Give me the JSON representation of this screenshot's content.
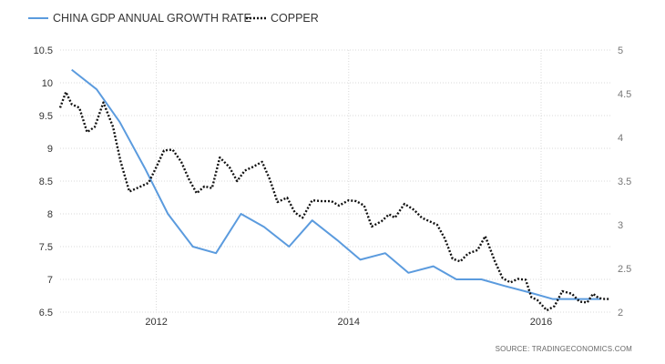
{
  "chart_data": {
    "type": "line",
    "source": "SOURCE: TRADINGECONOMICS.COM",
    "x_ticks": [
      {
        "x": 2012.0,
        "label": "2012"
      },
      {
        "x": 2014.0,
        "label": "2014"
      },
      {
        "x": 2016.0,
        "label": "2016"
      }
    ],
    "xlim": [
      2011.0,
      2016.72
    ],
    "y_left": {
      "lim": [
        6.5,
        10.5
      ],
      "ticks": [
        "6.5",
        "7",
        "7.5",
        "8",
        "8.5",
        "9",
        "9.5",
        "10",
        "10.5"
      ]
    },
    "y_right": {
      "lim": [
        2,
        5
      ],
      "ticks": [
        "2",
        "2.5",
        "3",
        "3.5",
        "4",
        "4.5",
        "5"
      ]
    },
    "grid": true,
    "legend_position": "top-left",
    "series": [
      {
        "name": "CHINA GDP ANNUAL GROWTH RATE",
        "axis": "left",
        "color": "#5b9bde",
        "style": "solid",
        "points": [
          [
            2011.12,
            10.2
          ],
          [
            2011.38,
            9.9
          ],
          [
            2011.62,
            9.4
          ],
          [
            2011.88,
            8.7
          ],
          [
            2012.12,
            8.0
          ],
          [
            2012.38,
            7.5
          ],
          [
            2012.62,
            7.4
          ],
          [
            2012.88,
            8.0
          ],
          [
            2013.12,
            7.8
          ],
          [
            2013.38,
            7.5
          ],
          [
            2013.62,
            7.9
          ],
          [
            2013.88,
            7.6
          ],
          [
            2014.12,
            7.3
          ],
          [
            2014.38,
            7.4
          ],
          [
            2014.62,
            7.1
          ],
          [
            2014.88,
            7.2
          ],
          [
            2015.12,
            7.0
          ],
          [
            2015.38,
            7.0
          ],
          [
            2015.62,
            6.9
          ],
          [
            2015.88,
            6.8
          ],
          [
            2016.12,
            6.7
          ],
          [
            2016.38,
            6.7
          ],
          [
            2016.62,
            6.7
          ]
        ]
      },
      {
        "name": "COPPER",
        "axis": "right",
        "color": "#111111",
        "style": "dotted",
        "points": [
          [
            2011.0,
            4.34
          ],
          [
            2011.06,
            4.52
          ],
          [
            2011.12,
            4.38
          ],
          [
            2011.2,
            4.34
          ],
          [
            2011.28,
            4.06
          ],
          [
            2011.36,
            4.12
          ],
          [
            2011.45,
            4.4
          ],
          [
            2011.55,
            4.12
          ],
          [
            2011.63,
            3.72
          ],
          [
            2011.72,
            3.38
          ],
          [
            2011.8,
            3.42
          ],
          [
            2011.92,
            3.48
          ],
          [
            2012.0,
            3.66
          ],
          [
            2012.08,
            3.85
          ],
          [
            2012.17,
            3.86
          ],
          [
            2012.26,
            3.72
          ],
          [
            2012.34,
            3.52
          ],
          [
            2012.42,
            3.36
          ],
          [
            2012.5,
            3.44
          ],
          [
            2012.58,
            3.42
          ],
          [
            2012.66,
            3.77
          ],
          [
            2012.76,
            3.66
          ],
          [
            2012.84,
            3.5
          ],
          [
            2012.92,
            3.62
          ],
          [
            2013.0,
            3.66
          ],
          [
            2013.1,
            3.72
          ],
          [
            2013.18,
            3.52
          ],
          [
            2013.26,
            3.26
          ],
          [
            2013.36,
            3.31
          ],
          [
            2013.44,
            3.14
          ],
          [
            2013.52,
            3.08
          ],
          [
            2013.62,
            3.28
          ],
          [
            2013.72,
            3.27
          ],
          [
            2013.82,
            3.27
          ],
          [
            2013.9,
            3.22
          ],
          [
            2014.0,
            3.28
          ],
          [
            2014.08,
            3.27
          ],
          [
            2014.16,
            3.22
          ],
          [
            2014.24,
            2.98
          ],
          [
            2014.34,
            3.04
          ],
          [
            2014.42,
            3.12
          ],
          [
            2014.48,
            3.08
          ],
          [
            2014.58,
            3.24
          ],
          [
            2014.68,
            3.17
          ],
          [
            2014.76,
            3.08
          ],
          [
            2014.84,
            3.04
          ],
          [
            2014.92,
            3.0
          ],
          [
            2015.0,
            2.84
          ],
          [
            2015.08,
            2.61
          ],
          [
            2015.16,
            2.58
          ],
          [
            2015.24,
            2.67
          ],
          [
            2015.34,
            2.71
          ],
          [
            2015.42,
            2.87
          ],
          [
            2015.52,
            2.58
          ],
          [
            2015.6,
            2.39
          ],
          [
            2015.68,
            2.34
          ],
          [
            2015.76,
            2.38
          ],
          [
            2015.84,
            2.37
          ],
          [
            2015.9,
            2.17
          ],
          [
            2015.96,
            2.14
          ],
          [
            2016.06,
            2.02
          ],
          [
            2016.14,
            2.07
          ],
          [
            2016.22,
            2.24
          ],
          [
            2016.32,
            2.21
          ],
          [
            2016.4,
            2.12
          ],
          [
            2016.48,
            2.11
          ],
          [
            2016.54,
            2.21
          ],
          [
            2016.6,
            2.16
          ],
          [
            2016.66,
            2.15
          ],
          [
            2016.72,
            2.15
          ]
        ]
      }
    ]
  }
}
